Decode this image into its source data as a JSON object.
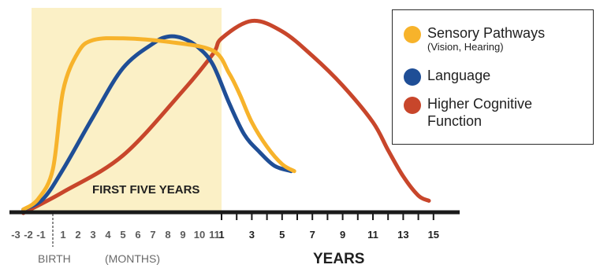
{
  "chart_data": {
    "type": "line",
    "title": "",
    "xlabel": "YEARS",
    "ylabel": "",
    "legend": "top-right",
    "grid": false,
    "shaded_region_label": "FIRST FIVE YEARS",
    "birth_label": "BIRTH",
    "months_label": "(MONTHS)",
    "x_tick_labels": {
      "prenatal_months": [
        "-3",
        "-2",
        "-1"
      ],
      "months": [
        "1",
        "2",
        "3",
        "4",
        "5",
        "6",
        "7",
        "8",
        "9",
        "10",
        "11"
      ],
      "years": [
        "1",
        "3",
        "5",
        "7",
        "9",
        "11",
        "13",
        "15"
      ]
    },
    "series": [
      {
        "name": "Sensory Pathways",
        "subtitle": "(Vision, Hearing)",
        "color": "#F7B32B",
        "points": [
          [
            -3,
            2
          ],
          [
            -1.5,
            8
          ],
          [
            0,
            25
          ],
          [
            1,
            70
          ],
          [
            2,
            92
          ],
          [
            3,
            99
          ],
          [
            5,
            100
          ],
          [
            8,
            98
          ],
          [
            11,
            93
          ],
          [
            1.5,
            80
          ],
          [
            2.2,
            68
          ],
          [
            3,
            52
          ],
          [
            4,
            38
          ],
          [
            5,
            28
          ],
          [
            5.8,
            24
          ]
        ]
      },
      {
        "name": "Language",
        "color": "#1F4E96",
        "points": [
          [
            -3,
            2
          ],
          [
            -1,
            8
          ],
          [
            1,
            25
          ],
          [
            3,
            55
          ],
          [
            5,
            83
          ],
          [
            7,
            97
          ],
          [
            8,
            101
          ],
          [
            9,
            100
          ],
          [
            10,
            95
          ],
          [
            11,
            85
          ],
          [
            1.5,
            63
          ],
          [
            2.5,
            45
          ],
          [
            3.5,
            35
          ],
          [
            4.5,
            27
          ],
          [
            5.6,
            24
          ]
        ]
      },
      {
        "name": "Higher Cognitive Function",
        "color": "#C8462B",
        "points": [
          [
            -3,
            0
          ],
          [
            1,
            12
          ],
          [
            5,
            33
          ],
          [
            9,
            70
          ],
          [
            11,
            91
          ],
          [
            1,
            100
          ],
          [
            3,
            110
          ],
          [
            5,
            104
          ],
          [
            7,
            90
          ],
          [
            9,
            73
          ],
          [
            11,
            52
          ],
          [
            12,
            36
          ],
          [
            13,
            21
          ],
          [
            14,
            10
          ],
          [
            14.7,
            7
          ]
        ]
      }
    ]
  }
}
